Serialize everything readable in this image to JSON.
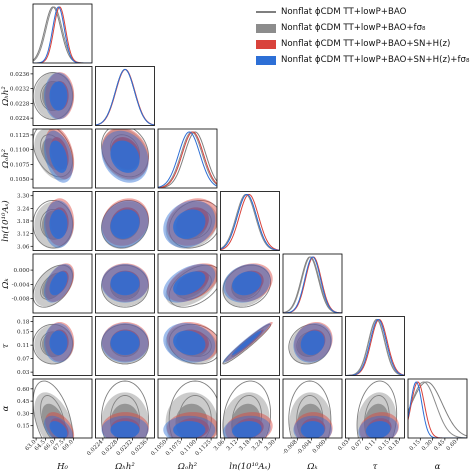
{
  "chart_data": {
    "type": "corner",
    "legend_position": "top-right",
    "parameters": [
      {
        "key": "H0",
        "label": "H₀",
        "range": [
          62.5,
          72.0
        ],
        "ticks": [
          "63.0",
          "64.5",
          "66.0",
          "67.5",
          "69.0"
        ]
      },
      {
        "key": "Omega_b_h2",
        "label": "Ωₕh²",
        "range": [
          0.0222,
          0.0238
        ],
        "ticks": [
          "0.0224",
          "0.0228",
          "0.0232",
          "0.0236"
        ]
      },
      {
        "key": "Omega_c_h2",
        "label": "Ωₒh²",
        "range": [
          0.1035,
          0.1135
        ],
        "ticks": [
          "0.1050",
          "0.1075",
          "0.1100",
          "0.1125"
        ]
      },
      {
        "key": "ln10A",
        "label": "ln(10¹⁰Aₛ)",
        "range": [
          3.04,
          3.32
        ],
        "ticks": [
          "3.06",
          "3.12",
          "3.18",
          "3.24",
          "3.30"
        ]
      },
      {
        "key": "Omega_K",
        "label": "Ωₖ",
        "range": [
          -0.012,
          0.0045
        ],
        "ticks": [
          "-0.008",
          "-0.004",
          "0.000"
        ]
      },
      {
        "key": "tau",
        "label": "τ",
        "range": [
          0.02,
          0.195
        ],
        "ticks": [
          "0.03",
          "0.07",
          "0.11",
          "0.15",
          "0.18"
        ]
      },
      {
        "key": "alpha",
        "label": "α",
        "range": [
          0.0,
          0.72
        ],
        "ticks": [
          "0.15",
          "0.30",
          "0.45",
          "0.60"
        ]
      }
    ],
    "series": [
      {
        "name": "Nonflat ϕCDM TT+lowP+BAO",
        "style": "line",
        "color": "#7f7f7f",
        "means": [
          65.7,
          0.023,
          0.1098,
          3.165,
          -0.0045,
          0.113,
          0.23
        ],
        "sigmas": [
          1.3,
          0.00026,
          0.0018,
          0.046,
          0.0024,
          0.024,
          0.19
        ]
      },
      {
        "name": "Nonflat ϕCDM TT+lowP+BAO+fσ₈",
        "style": "fill",
        "color": "#8c8c8c",
        "means": [
          65.9,
          0.023,
          0.1092,
          3.16,
          -0.0043,
          0.112,
          0.19
        ],
        "sigmas": [
          1.3,
          0.00026,
          0.0018,
          0.046,
          0.0024,
          0.024,
          0.15
        ]
      },
      {
        "name": "Nonflat ϕCDM TT+lowP+BAO+SN+H(z)",
        "style": "fill",
        "color": "#d9423b",
        "means": [
          66.8,
          0.02301,
          0.1094,
          3.175,
          -0.0035,
          0.12,
          0.12
        ],
        "sigmas": [
          0.95,
          0.00026,
          0.0018,
          0.046,
          0.0022,
          0.024,
          0.08
        ]
      },
      {
        "name": "Nonflat ϕCDM TT+lowP+BAO+SN+H(z)+fσ₈",
        "style": "fill",
        "color": "#2d6fd6",
        "means": [
          66.6,
          0.023,
          0.1088,
          3.165,
          -0.0037,
          0.117,
          0.1
        ],
        "sigmas": [
          0.95,
          0.00026,
          0.0018,
          0.046,
          0.0022,
          0.024,
          0.07
        ]
      }
    ],
    "correlations": [
      [
        "H0",
        "Omega_c_h2",
        -0.35
      ],
      [
        "H0",
        "Omega_K",
        0.45
      ],
      [
        "H0",
        "alpha",
        -0.45
      ],
      [
        "Omega_b_h2",
        "Omega_c_h2",
        -0.2
      ],
      [
        "Omega_b_h2",
        "ln10A",
        0.15
      ],
      [
        "Omega_c_h2",
        "ln10A",
        0.2
      ],
      [
        "Omega_c_h2",
        "Omega_K",
        0.45
      ],
      [
        "Omega_c_h2",
        "tau",
        -0.15
      ],
      [
        "ln10A",
        "tau",
        0.97
      ],
      [
        "ln10A",
        "Omega_K",
        0.2
      ],
      [
        "ln10A",
        "alpha",
        0.15
      ],
      [
        "Omega_K",
        "tau",
        0.15
      ],
      [
        "tau",
        "alpha",
        0.15
      ]
    ]
  }
}
